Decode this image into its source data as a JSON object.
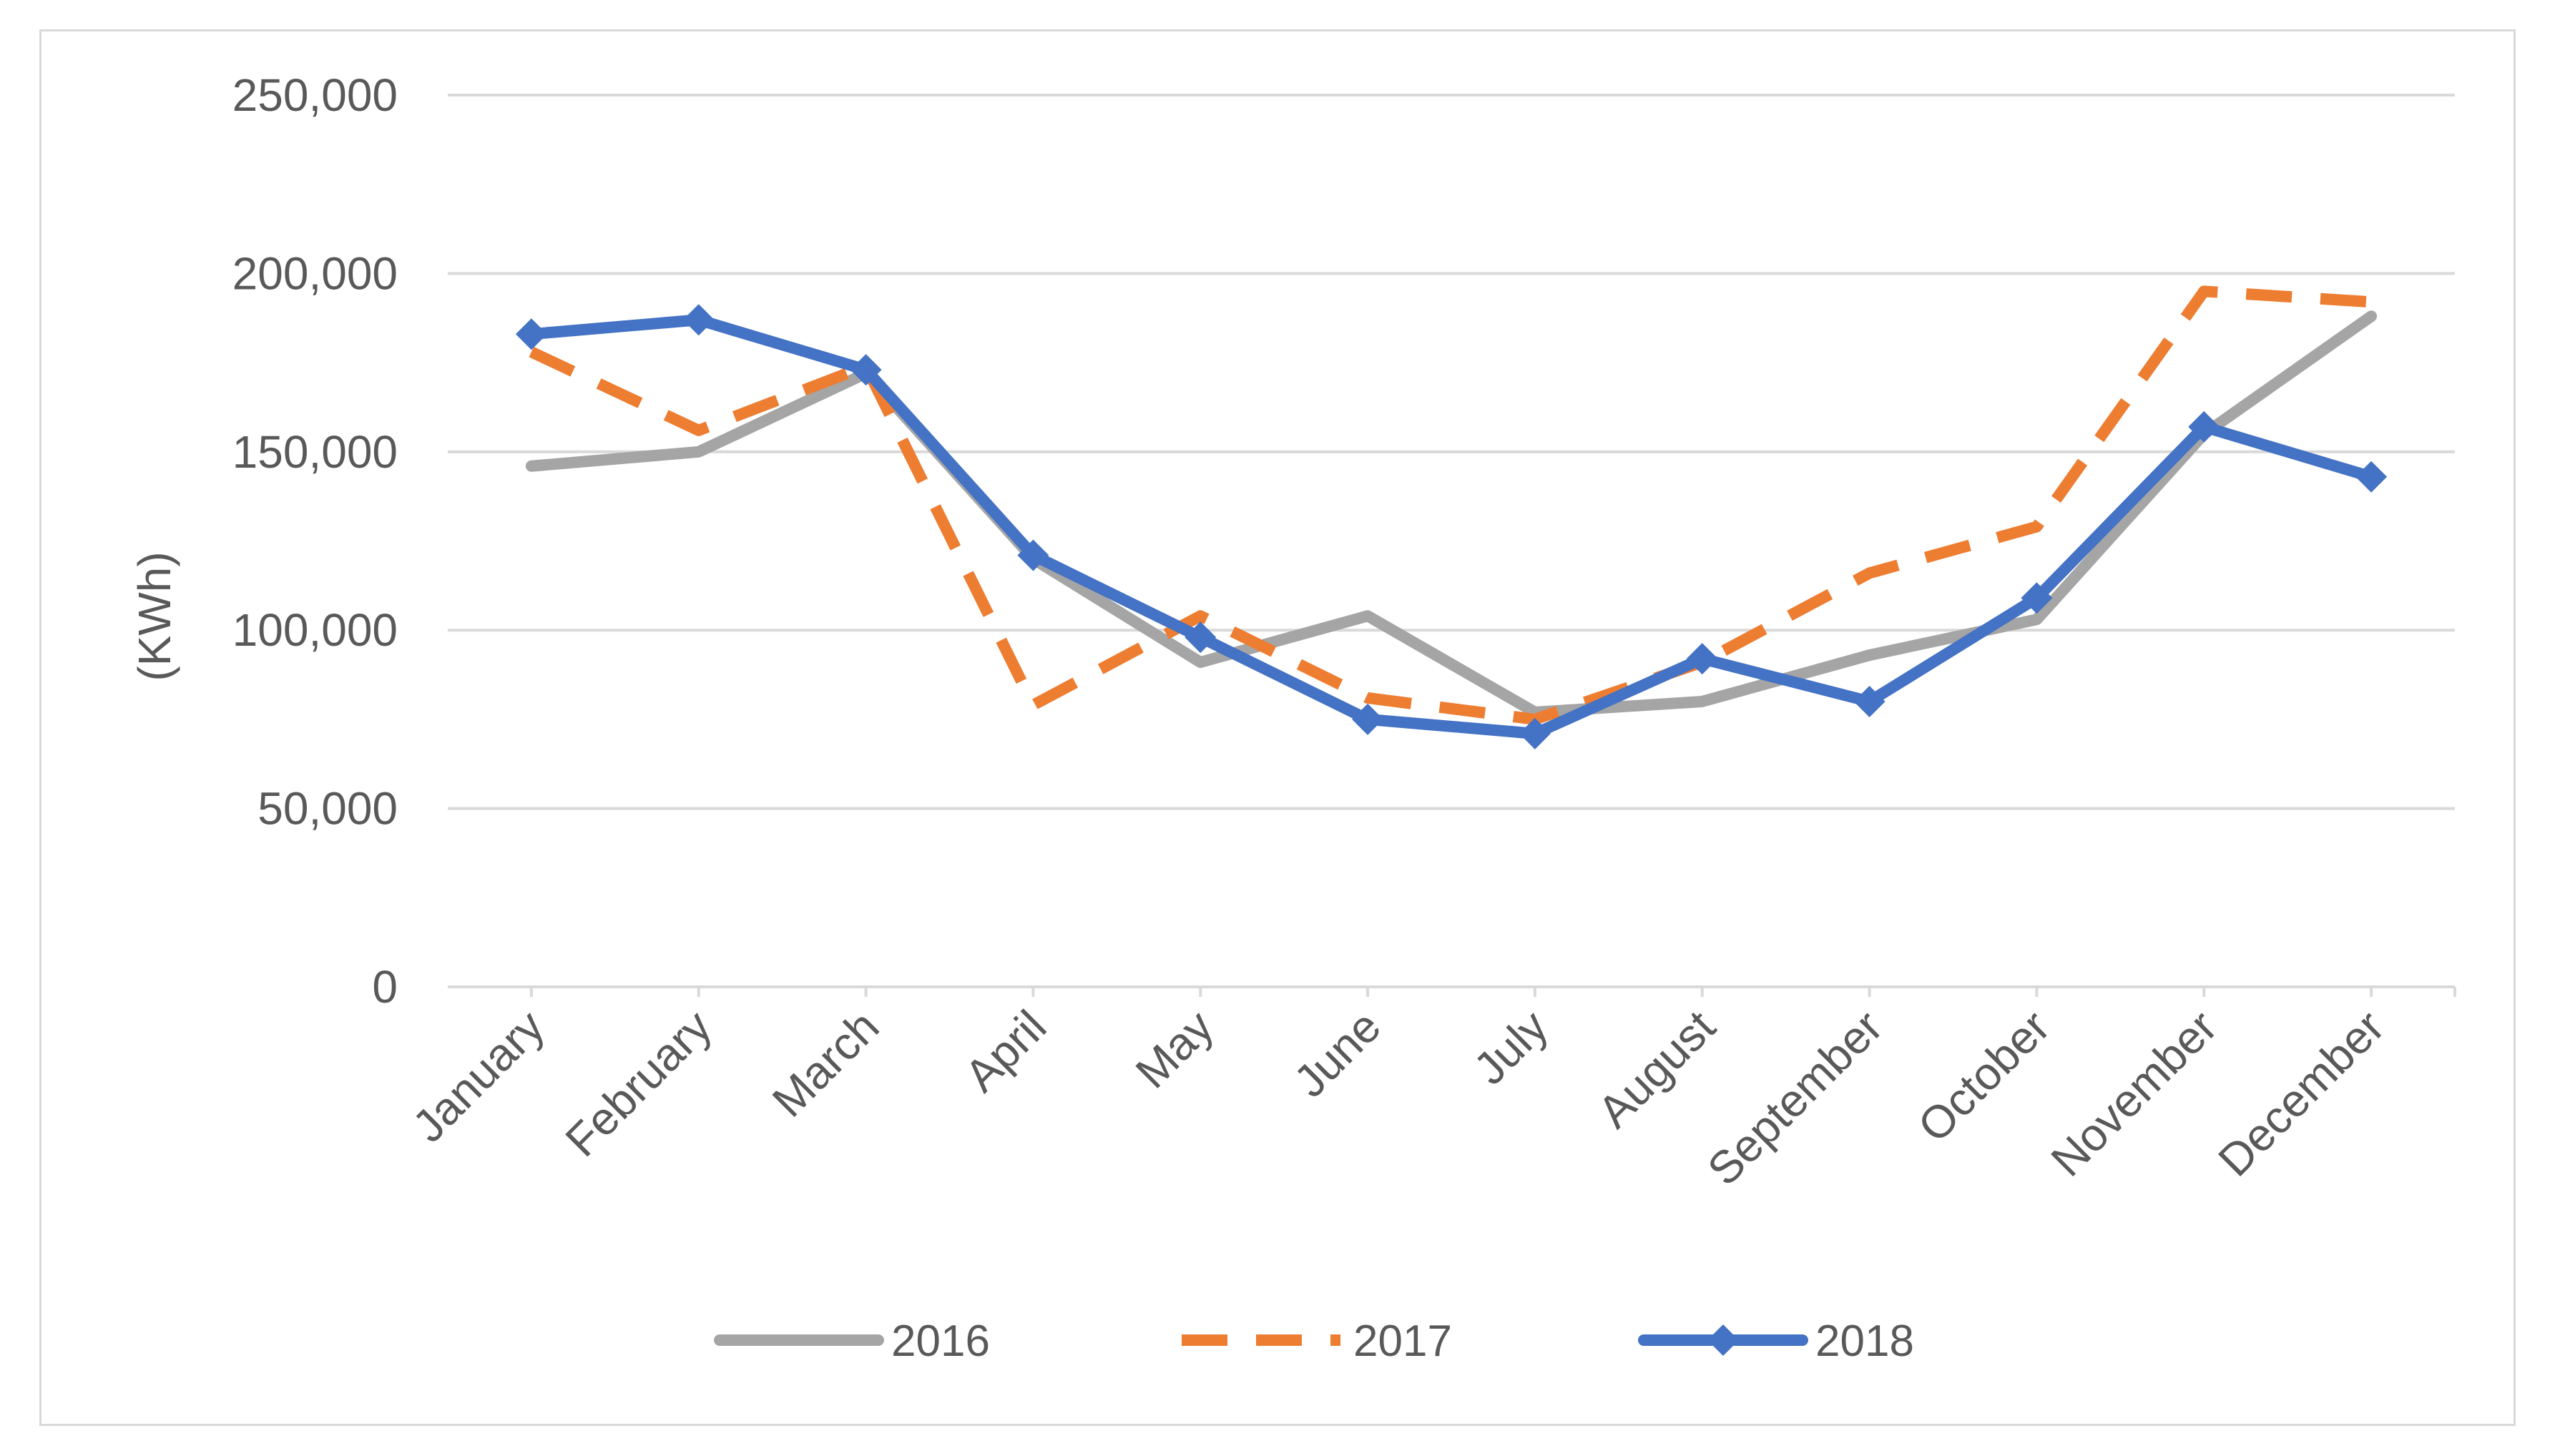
{
  "chart_data": {
    "type": "line",
    "title": "",
    "xlabel": "",
    "ylabel": "(KWh)",
    "ylim": [
      0,
      250000
    ],
    "yticks": [
      0,
      50000,
      100000,
      150000,
      200000,
      250000
    ],
    "ytick_labels": [
      "0",
      "50,000",
      "100,000",
      "150,000",
      "200,000",
      "250,000"
    ],
    "grid": true,
    "legend_position": "bottom",
    "categories": [
      "January",
      "February",
      "March",
      "April",
      "May",
      "June",
      "July",
      "August",
      "September",
      "October",
      "November",
      "December"
    ],
    "series": [
      {
        "name": "2016",
        "color": "#a5a5a5",
        "style": "solid",
        "marker": "none",
        "values": [
          146000,
          150000,
          172000,
          120000,
          91000,
          104000,
          77000,
          80000,
          93000,
          103000,
          155000,
          188000
        ]
      },
      {
        "name": "2017",
        "color": "#ed7d31",
        "style": "dashed",
        "marker": "none",
        "values": [
          178000,
          156000,
          174000,
          79000,
          104000,
          81000,
          75000,
          91000,
          116000,
          129000,
          195000,
          192000
        ]
      },
      {
        "name": "2018",
        "color": "#4472c4",
        "style": "solid",
        "marker": "diamond",
        "values": [
          183000,
          187000,
          173000,
          121000,
          98000,
          75000,
          71000,
          92000,
          80000,
          109000,
          157000,
          143000
        ]
      }
    ]
  }
}
